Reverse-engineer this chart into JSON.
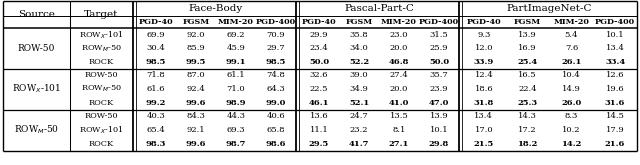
{
  "face_body": [
    [
      [
        69.9,
        92.0,
        69.2,
        70.9
      ],
      [
        30.4,
        85.9,
        45.9,
        29.7
      ],
      [
        98.5,
        99.5,
        99.1,
        98.5
      ]
    ],
    [
      [
        71.8,
        87.0,
        61.1,
        74.8
      ],
      [
        61.6,
        92.4,
        71.0,
        64.3
      ],
      [
        99.2,
        99.6,
        98.9,
        99.0
      ]
    ],
    [
      [
        40.3,
        84.3,
        44.3,
        40.6
      ],
      [
        65.4,
        92.1,
        69.3,
        65.8
      ],
      [
        98.3,
        99.6,
        98.7,
        98.6
      ]
    ]
  ],
  "pascal_part_c": [
    [
      [
        29.9,
        35.8,
        23.0,
        31.5
      ],
      [
        23.4,
        34.0,
        20.0,
        25.9
      ],
      [
        50.0,
        52.2,
        46.8,
        50.0
      ]
    ],
    [
      [
        32.6,
        39.0,
        27.4,
        35.7
      ],
      [
        22.5,
        34.9,
        20.0,
        23.9
      ],
      [
        46.1,
        52.1,
        41.0,
        47.0
      ]
    ],
    [
      [
        13.6,
        24.7,
        13.5,
        13.9
      ],
      [
        11.1,
        23.2,
        8.1,
        10.1
      ],
      [
        29.5,
        41.7,
        27.1,
        29.8
      ]
    ]
  ],
  "partimagenet_c": [
    [
      [
        9.3,
        13.9,
        5.4,
        10.1
      ],
      [
        12.0,
        16.9,
        7.6,
        13.4
      ],
      [
        33.9,
        25.4,
        26.1,
        33.4
      ]
    ],
    [
      [
        12.4,
        16.5,
        10.4,
        12.6
      ],
      [
        18.6,
        22.4,
        14.9,
        19.6
      ],
      [
        31.8,
        25.3,
        26.0,
        31.6
      ]
    ],
    [
      [
        13.4,
        14.3,
        8.3,
        14.5
      ],
      [
        17.0,
        17.2,
        10.2,
        17.9
      ],
      [
        21.5,
        18.2,
        14.2,
        21.6
      ]
    ]
  ],
  "source_labels": [
    "ROW-50",
    "ROW$_X$-101",
    "ROW$_M$-50"
  ],
  "target_labels": [
    [
      "ROW$_X$-101",
      "ROW$_M$-50",
      "ROCK"
    ],
    [
      "ROW-50",
      "ROW$_M$-50",
      "ROCK"
    ],
    [
      "ROW-50",
      "ROW$_X$-101",
      "ROCK"
    ]
  ],
  "dataset_names": [
    "Face-Body",
    "Pascal-Part-C",
    "PartImageNet-C"
  ],
  "sub_cols": [
    "PGD-40",
    "FGSM",
    "MIM-20",
    "PGD-400"
  ]
}
